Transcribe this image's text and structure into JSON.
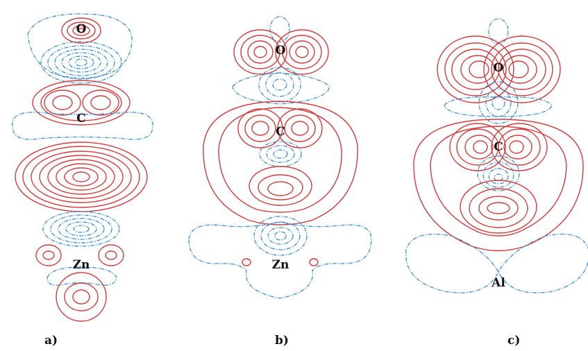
{
  "panels": [
    {
      "label": "a)",
      "atoms": [
        "O",
        "C",
        "Zn"
      ]
    },
    {
      "label": "b)",
      "atoms": [
        "O",
        "C",
        "Zn"
      ]
    },
    {
      "label": "c)",
      "atoms": [
        "O",
        "C",
        "Al"
      ]
    }
  ],
  "colors": {
    "positive": "#d23b3b",
    "negative": "#3b8fd6"
  }
}
